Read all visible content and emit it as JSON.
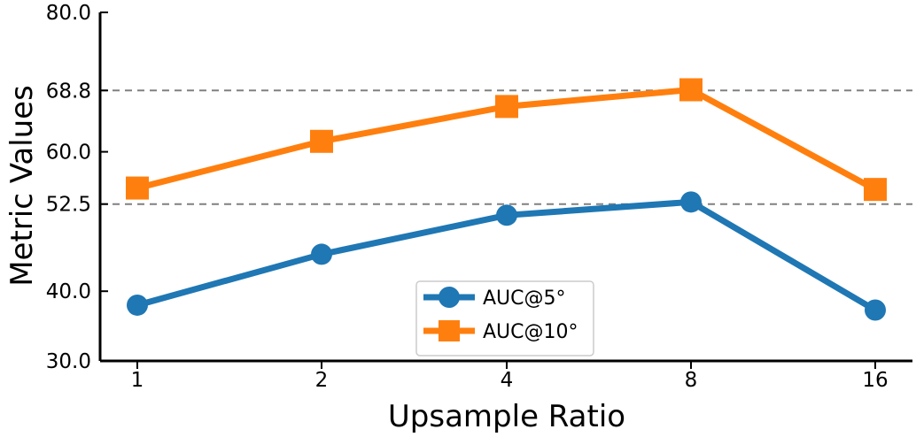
{
  "chart_data": {
    "type": "line",
    "x": [
      "1",
      "2",
      "4",
      "8",
      "16"
    ],
    "series": [
      {
        "name": "AUC@5°",
        "values": [
          38.0,
          45.3,
          50.9,
          52.8,
          37.3
        ],
        "color": "#1f77b4",
        "marker": "circle"
      },
      {
        "name": "AUC@10°",
        "values": [
          54.8,
          61.5,
          66.5,
          68.9,
          54.6
        ],
        "color": "#ff7f0e",
        "marker": "square"
      }
    ],
    "xlabel": "Upsample Ratio",
    "ylabel": "Metric Values",
    "yticks": [
      "30.0",
      "40.0",
      "52.5",
      "60.0",
      "68.8",
      "80.0"
    ],
    "ylim": [
      30,
      80
    ],
    "reference_lines": [
      68.8,
      52.5
    ],
    "legend": {
      "placement": "lower-center"
    }
  }
}
